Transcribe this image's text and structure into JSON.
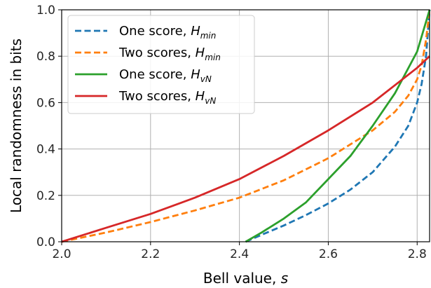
{
  "chart_data": {
    "type": "line",
    "xlabel_text": "Bell value, ",
    "xlabel_var": "s",
    "ylabel": "Local randomness in bits",
    "xlim": [
      2.0,
      2.828
    ],
    "ylim": [
      0.0,
      1.0
    ],
    "xticks": [
      "2.0",
      "2.2",
      "2.4",
      "2.6",
      "2.8"
    ],
    "xtick_values": [
      2.0,
      2.2,
      2.4,
      2.6,
      2.8
    ],
    "yticks": [
      "0.0",
      "0.2",
      "0.4",
      "0.6",
      "0.8",
      "1.0"
    ],
    "ytick_values": [
      0.0,
      0.2,
      0.4,
      0.6,
      0.8,
      1.0
    ],
    "grid": true,
    "legend_position": "top-left",
    "series": [
      {
        "name": "One score, ",
        "name_symbol": "H",
        "name_sub": "min",
        "color": "#1f77b4",
        "style": "dashed",
        "x": [
          2.414,
          2.45,
          2.5,
          2.55,
          2.6,
          2.65,
          2.7,
          2.75,
          2.78,
          2.8,
          2.81,
          2.82,
          2.828
        ],
        "y": [
          0.0,
          0.03,
          0.07,
          0.115,
          0.165,
          0.225,
          0.3,
          0.41,
          0.5,
          0.6,
          0.68,
          0.8,
          1.0
        ]
      },
      {
        "name": "Two scores, ",
        "name_symbol": "H",
        "name_sub": "min",
        "color": "#ff7f0e",
        "style": "dashed",
        "x": [
          2.0,
          2.1,
          2.2,
          2.3,
          2.4,
          2.5,
          2.6,
          2.7,
          2.75,
          2.78,
          2.8,
          2.81,
          2.82,
          2.828
        ],
        "y": [
          0.0,
          0.04,
          0.085,
          0.135,
          0.19,
          0.265,
          0.36,
          0.48,
          0.56,
          0.63,
          0.7,
          0.76,
          0.87,
          1.0
        ]
      },
      {
        "name": "One score, ",
        "name_symbol": "H",
        "name_sub": "vN",
        "color": "#2ca02c",
        "style": "solid",
        "x": [
          2.414,
          2.45,
          2.5,
          2.55,
          2.6,
          2.65,
          2.7,
          2.75,
          2.8,
          2.828
        ],
        "y": [
          0.0,
          0.04,
          0.1,
          0.17,
          0.27,
          0.37,
          0.5,
          0.64,
          0.82,
          1.0
        ]
      },
      {
        "name": "Two scores, ",
        "name_symbol": "H",
        "name_sub": "vN",
        "color": "#d62728",
        "style": "solid",
        "x": [
          2.0,
          2.1,
          2.2,
          2.3,
          2.4,
          2.5,
          2.6,
          2.7,
          2.8,
          2.828
        ],
        "y": [
          0.0,
          0.06,
          0.12,
          0.19,
          0.27,
          0.37,
          0.48,
          0.6,
          0.75,
          0.8
        ]
      }
    ]
  }
}
